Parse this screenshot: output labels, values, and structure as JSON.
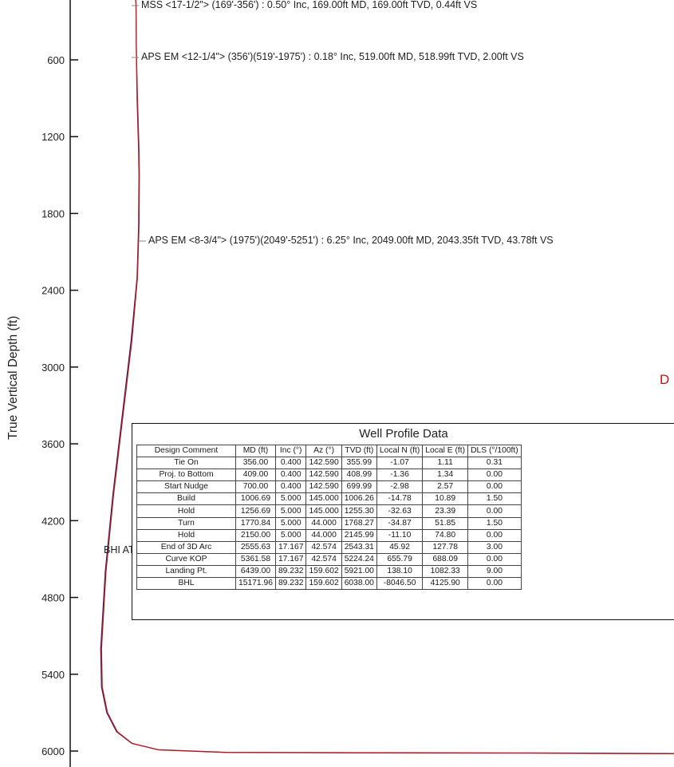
{
  "chart_data": {
    "type": "line",
    "ylabel": "True Vertical Depth (ft)",
    "y_ticks": [
      600,
      1200,
      1800,
      2400,
      3000,
      3600,
      4200,
      4800,
      5400,
      6000
    ],
    "y_axis": "inverted",
    "grid": false,
    "series_colors": {
      "plan": "#1a2a6c",
      "actual": "#d0141a"
    },
    "series": [
      {
        "name": "plan",
        "points": [
          {
            "h": 0,
            "tvd": -50
          },
          {
            "h": 0,
            "tvd": 120
          },
          {
            "h": 0.5,
            "tvd": 160
          },
          {
            "h": 1,
            "tvd": 500
          },
          {
            "h": 2,
            "tvd": 900
          },
          {
            "h": 4,
            "tvd": 1300
          },
          {
            "h": 4.5,
            "tvd": 1500
          },
          {
            "h": 4,
            "tvd": 1900
          },
          {
            "h": 2,
            "tvd": 2300
          },
          {
            "h": -6,
            "tvd": 2800
          },
          {
            "h": -18,
            "tvd": 3400
          },
          {
            "h": -30,
            "tvd": 4000
          },
          {
            "h": -40,
            "tvd": 4600
          },
          {
            "h": -46,
            "tvd": 5200
          },
          {
            "h": -45,
            "tvd": 5500
          },
          {
            "h": -38,
            "tvd": 5700
          },
          {
            "h": -25,
            "tvd": 5850
          },
          {
            "h": -5,
            "tvd": 5940
          },
          {
            "h": 30,
            "tvd": 5990
          },
          {
            "h": 120,
            "tvd": 6010
          },
          {
            "h": 300,
            "tvd": 6013
          },
          {
            "h": 520,
            "tvd": 6015
          },
          {
            "h": 725,
            "tvd": 6020
          }
        ]
      },
      {
        "name": "actual",
        "points": [
          {
            "h": 0,
            "tvd": -50
          },
          {
            "h": 0,
            "tvd": 120
          },
          {
            "h": 0.5,
            "tvd": 160
          },
          {
            "h": 1,
            "tvd": 500
          },
          {
            "h": 2.5,
            "tvd": 900
          },
          {
            "h": 4.5,
            "tvd": 1300
          },
          {
            "h": 5,
            "tvd": 1500
          },
          {
            "h": 4.5,
            "tvd": 1900
          },
          {
            "h": 2.5,
            "tvd": 2300
          },
          {
            "h": -5,
            "tvd": 2800
          },
          {
            "h": -17,
            "tvd": 3400
          },
          {
            "h": -29,
            "tvd": 4000
          },
          {
            "h": -39,
            "tvd": 4600
          },
          {
            "h": -45,
            "tvd": 5200
          },
          {
            "h": -44,
            "tvd": 5500
          },
          {
            "h": -37,
            "tvd": 5700
          },
          {
            "h": -24,
            "tvd": 5850
          },
          {
            "h": -4,
            "tvd": 5942
          },
          {
            "h": 31,
            "tvd": 5992
          },
          {
            "h": 121,
            "tvd": 6012
          },
          {
            "h": 300,
            "tvd": 6015
          },
          {
            "h": 520,
            "tvd": 6017
          },
          {
            "h": 725,
            "tvd": 6022
          }
        ]
      }
    ],
    "annotations": [
      {
        "text": "MSS <17-1/2\"> (169'-356') : 0.50° Inc, 169.00ft MD, 169.00ft TVD, 0.44ft VS",
        "tvd": 169
      },
      {
        "text": "APS EM <12-1/4\"> (356')(519'-1975') : 0.18° Inc, 519.00ft MD, 518.99ft TVD, 2.00ft VS",
        "tvd": 519
      },
      {
        "text": "APS EM <8-3/4\"> (1975')(2049'-5251') : 6.25° Inc, 2049.00ft MD, 2043.35ft TVD, 43.78ft VS",
        "tvd": 2043
      },
      {
        "text": "BHI AT Curve <8-1/2\"> (5251')(5328'-15157') : 16.73° Inc, 5328.00ft MD, 5189.90ft TVD, -278.24ft V",
        "tvd": 5190
      }
    ],
    "partial_label": "D",
    "table": {
      "title": "Well Profile Data",
      "columns": [
        "Design Comment",
        "MD (ft)",
        "Inc (°)",
        "Az (°)",
        "TVD (ft)",
        "Local N (ft)",
        "Local E (ft)",
        "DLS (°/100ft)"
      ],
      "rows": [
        [
          "Tie On",
          "356.00",
          "0.400",
          "142.590",
          "355.99",
          "-1.07",
          "1.11",
          "0.31"
        ],
        [
          "Proj. to Bottom",
          "409.00",
          "0.400",
          "142.590",
          "408.99",
          "-1.36",
          "1.34",
          "0.00"
        ],
        [
          "Start Nudge",
          "700.00",
          "0.400",
          "142.590",
          "699.99",
          "-2.98",
          "2.57",
          "0.00"
        ],
        [
          "Build",
          "1006.69",
          "5.000",
          "145.000",
          "1006.26",
          "-14.78",
          "10.89",
          "1.50"
        ],
        [
          "Hold",
          "1256.69",
          "5.000",
          "145.000",
          "1255.30",
          "-32.63",
          "23.39",
          "0.00"
        ],
        [
          "Turn",
          "1770.84",
          "5.000",
          "44.000",
          "1768.27",
          "-34.87",
          "51.85",
          "1.50"
        ],
        [
          "Hold",
          "2150.00",
          "5.000",
          "44.000",
          "2145.99",
          "-11.10",
          "74.80",
          "0.00"
        ],
        [
          "End of 3D Arc",
          "2555.63",
          "17.167",
          "42.574",
          "2543.31",
          "45.92",
          "127.78",
          "3.00"
        ],
        [
          "Curve KOP",
          "5361.58",
          "17.167",
          "42.574",
          "5224.24",
          "655.79",
          "688.09",
          "0.00"
        ],
        [
          "Landing Pt.",
          "6439.00",
          "89.232",
          "159.602",
          "5921.00",
          "138.10",
          "1082.33",
          "9.00"
        ],
        [
          "BHL",
          "15171.96",
          "89.232",
          "159.602",
          "6038.00",
          "-8046.50",
          "4125.90",
          "0.00"
        ]
      ]
    }
  }
}
